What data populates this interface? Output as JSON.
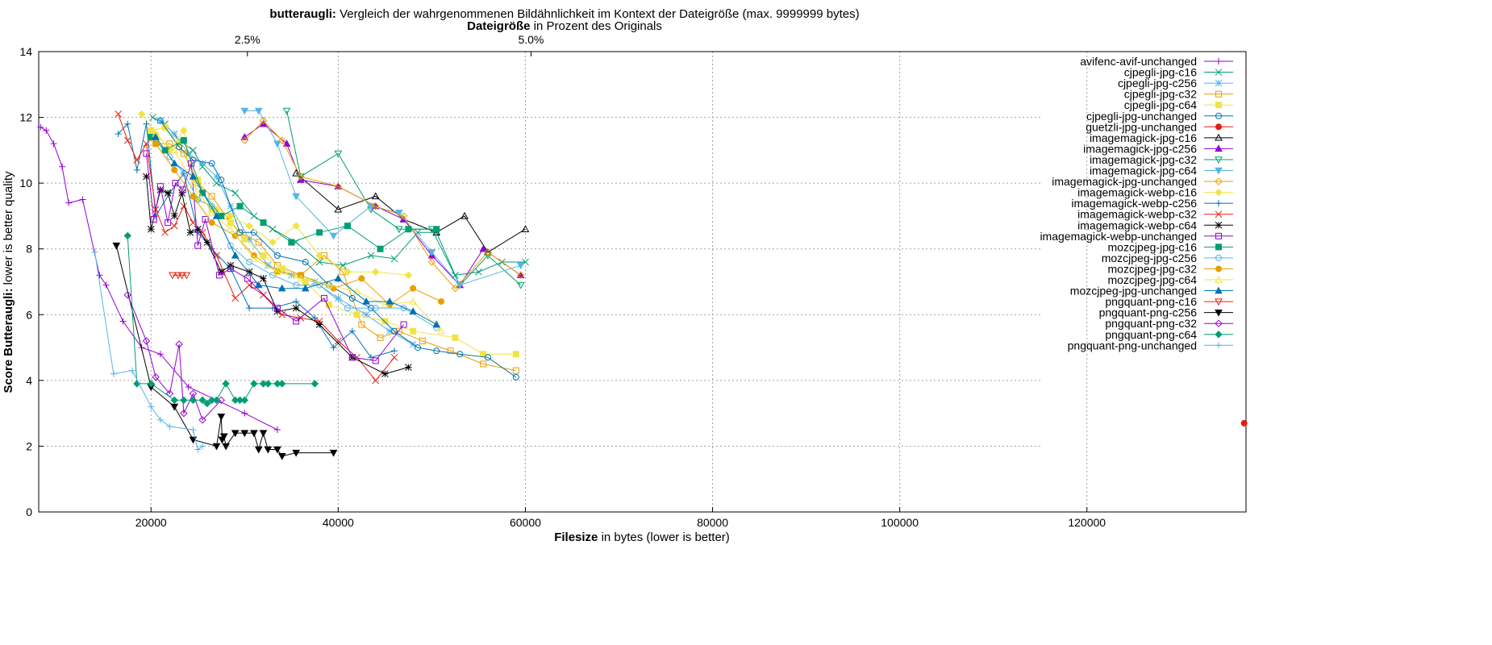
{
  "chart_data": {
    "type": "line",
    "title_bold": "butteraugli:",
    "title_rest": " Vergleich der wahrgenommenen Bildähnlichkeit im Kontext der Dateigröße (max. 9999999 bytes)",
    "x2label_bold": "Dateigröße",
    "x2label_rest": " in Prozent des Originals",
    "xlabel_bold": "Filesize",
    "xlabel_rest": " in bytes (lower is better)",
    "ylabel_bold": "Score Butteraugli:",
    "ylabel_rest": " lower is better quality",
    "xlim": [
      8000,
      137000
    ],
    "ylim": [
      0,
      14
    ],
    "xticks": [
      20000,
      40000,
      60000,
      80000,
      100000,
      120000
    ],
    "xtick_labels": [
      "20000",
      "40000",
      "60000",
      "80000",
      "100000",
      "120000"
    ],
    "yticks": [
      0,
      2,
      4,
      6,
      8,
      10,
      12,
      14
    ],
    "ytick_labels": [
      "0",
      "2",
      "4",
      "6",
      "8",
      "10",
      "12",
      "14"
    ],
    "x2ticks": [
      2.5,
      5.0
    ],
    "x2tick_labels": [
      "2.5%",
      "5.0%"
    ],
    "x2_ref_bytes": 1212000,
    "grid": true,
    "legend_position": "right",
    "series": [
      {
        "name": "avifenc-avif-unchanged",
        "color": "#9400d3",
        "marker": "plus",
        "x": [
          8200,
          8800,
          9600,
          10500,
          11200,
          12700,
          14500,
          15200,
          17000,
          19000,
          21000,
          24000,
          27000,
          30000,
          33500
        ],
        "y": [
          11.7,
          11.6,
          11.2,
          10.5,
          9.4,
          9.5,
          7.2,
          6.9,
          5.8,
          5.0,
          4.8,
          3.8,
          3.4,
          3.0,
          2.5
        ]
      },
      {
        "name": "cjpegli-jpg-c16",
        "color": "#009e73",
        "marker": "x",
        "x": [
          20200,
          21500,
          23000,
          24500,
          25500,
          27000,
          29000,
          31000,
          33000,
          35500,
          38000,
          40500,
          43500,
          46000,
          48500,
          50500,
          52500,
          55000,
          57500,
          60000
        ],
        "y": [
          12.0,
          11.8,
          11.3,
          11.0,
          10.5,
          10.0,
          9.7,
          9.0,
          8.6,
          8.2,
          7.6,
          7.5,
          7.8,
          7.7,
          8.5,
          8.5,
          7.2,
          7.3,
          7.6,
          7.6
        ]
      },
      {
        "name": "cjpegli-jpg-c256",
        "color": "#56b4e9",
        "marker": "star",
        "x": [
          21000,
          22500,
          24000,
          25500,
          27000,
          28500,
          30500,
          32500,
          35000,
          37500,
          40000,
          43000,
          45500,
          48000
        ],
        "y": [
          11.9,
          11.5,
          10.9,
          10.6,
          10.2,
          9.3,
          8.3,
          7.5,
          7.2,
          7.0,
          6.5,
          6.0,
          5.5,
          5.1
        ]
      },
      {
        "name": "cjpegli-jpg-c32",
        "color": "#e69f00",
        "marker": "square",
        "x": [
          20500,
          22000,
          23500,
          25000,
          26500,
          28000,
          29500,
          31500,
          33500,
          36000,
          38500,
          40500,
          42500,
          44500,
          46500,
          49000,
          52000,
          55500,
          59000
        ],
        "y": [
          11.2,
          11.2,
          10.9,
          10.0,
          9.6,
          9.0,
          8.5,
          8.2,
          7.5,
          7.2,
          7.8,
          7.3,
          5.7,
          5.3,
          5.5,
          5.2,
          4.9,
          4.5,
          4.3
        ]
      },
      {
        "name": "cjpegli-jpg-c64",
        "color": "#f0e442",
        "marker": "fsquare",
        "x": [
          20000,
          21500,
          23000,
          25000,
          26500,
          28500,
          30000,
          32000,
          34000,
          36500,
          39000,
          42000,
          45000,
          48000,
          52500,
          55500,
          59000
        ],
        "y": [
          11.6,
          11.7,
          11.2,
          10.1,
          9.2,
          8.8,
          8.3,
          7.8,
          7.4,
          7.0,
          6.3,
          6.0,
          5.8,
          5.5,
          5.3,
          4.8,
          4.8
        ]
      },
      {
        "name": "cjpegli-jpg-unchanged",
        "color": "#0072b2",
        "marker": "circle",
        "x": [
          21000,
          23000,
          24500,
          26500,
          27500,
          29500,
          31000,
          33500,
          36500,
          39000,
          41500,
          43500,
          46000,
          48500,
          50500,
          53000,
          56000,
          59000
        ],
        "y": [
          11.9,
          11.1,
          10.7,
          10.6,
          10.1,
          8.5,
          8.5,
          7.8,
          7.6,
          6.9,
          6.5,
          6.2,
          5.5,
          5.0,
          4.9,
          4.8,
          4.7,
          4.1
        ]
      },
      {
        "name": "guetzli-jpg-unchanged",
        "color": "#e51e10",
        "marker": "fcircle",
        "x": [
          136800
        ],
        "y": [
          2.7
        ]
      },
      {
        "name": "imagemagick-jpg-c16",
        "color": "#000000",
        "marker": "triangle",
        "x": [
          35500,
          40000,
          44000,
          47000,
          50500,
          53500,
          56000,
          60000
        ],
        "y": [
          10.3,
          9.2,
          9.6,
          8.9,
          8.5,
          9.0,
          7.9,
          8.6
        ]
      },
      {
        "name": "imagemagick-jpg-c256",
        "color": "#9400d3",
        "marker": "ftriangle",
        "x": [
          30000,
          32000,
          34500,
          36000,
          40000,
          44000,
          47000,
          50000,
          53000,
          55500,
          59500
        ],
        "y": [
          11.4,
          11.8,
          11.2,
          10.1,
          9.9,
          9.3,
          8.9,
          7.8,
          6.9,
          8.0,
          7.2
        ]
      },
      {
        "name": "imagemagick-jpg-c32",
        "color": "#009e73",
        "marker": "itriangle",
        "x": [
          34500,
          36000,
          40000,
          43500,
          46500,
          50000,
          53000,
          56000,
          59500
        ],
        "y": [
          12.2,
          10.2,
          10.9,
          9.2,
          8.6,
          8.6,
          6.9,
          7.8,
          6.9
        ]
      },
      {
        "name": "imagemagick-jpg-c64",
        "color": "#56b4e9",
        "marker": "fitriangle",
        "x": [
          30000,
          31500,
          33500,
          35500,
          39500,
          43500,
          46500,
          50000,
          53000,
          59500
        ],
        "y": [
          12.2,
          12.2,
          11.2,
          9.6,
          8.4,
          9.3,
          9.1,
          7.9,
          6.9,
          7.5
        ]
      },
      {
        "name": "imagemagick-jpg-unchanged",
        "color": "#e69f00",
        "marker": "diamond",
        "x": [
          30000,
          32000,
          34000,
          36000,
          40000,
          44000,
          47000,
          50000,
          52500,
          56000,
          59500
        ],
        "y": [
          11.3,
          11.9,
          11.3,
          10.2,
          9.9,
          9.3,
          9.0,
          7.6,
          6.8,
          7.9,
          7.2
        ]
      },
      {
        "name": "imagemagick-webp-c16",
        "color": "#f0e442",
        "marker": "fdiamond",
        "x": [
          19000,
          20500,
          22000,
          23500,
          25000,
          27000,
          28500,
          30500,
          33000,
          35500,
          38000,
          41000,
          44000,
          47500
        ],
        "y": [
          12.1,
          11.5,
          11.0,
          11.6,
          9.5,
          9.2,
          9.0,
          8.7,
          8.2,
          8.7,
          7.8,
          7.3,
          7.3,
          7.2
        ]
      },
      {
        "name": "imagemagick-webp-c256",
        "color": "#0072b2",
        "marker": "plus",
        "x": [
          16500,
          17500,
          18500,
          19500,
          20500,
          22000,
          23500,
          25000,
          26500,
          28500,
          30500,
          33000,
          35500,
          37500,
          39500,
          41500,
          43500,
          46000
        ],
        "y": [
          11.5,
          11.8,
          10.4,
          11.8,
          9.0,
          9.7,
          10.3,
          8.5,
          8.0,
          7.4,
          6.2,
          6.2,
          6.4,
          5.9,
          5.0,
          5.5,
          4.7,
          4.9
        ]
      },
      {
        "name": "imagemagick-webp-c32",
        "color": "#e51e10",
        "marker": "x",
        "x": [
          16500,
          17500,
          18500,
          19500,
          20500,
          21500,
          22500,
          23500,
          24500,
          25500,
          27000,
          29000,
          30500,
          32000,
          34000,
          36000,
          38000,
          40000,
          42000,
          44000,
          46000
        ],
        "y": [
          12.1,
          11.3,
          10.7,
          11.2,
          9.2,
          8.5,
          8.7,
          9.3,
          8.8,
          8.5,
          7.8,
          6.5,
          6.9,
          6.6,
          6.0,
          5.9,
          5.8,
          5.2,
          4.7,
          4.0,
          4.7
        ]
      },
      {
        "name": "imagemagick-webp-c64",
        "color": "#000000",
        "marker": "star",
        "x": [
          19500,
          20000,
          21000,
          21800,
          22500,
          23300,
          24200,
          25000,
          26000,
          27500,
          28500,
          30500,
          32000,
          33500,
          35500,
          38000,
          41500,
          45000,
          47500
        ],
        "y": [
          10.2,
          8.6,
          9.8,
          9.7,
          9.0,
          9.7,
          8.5,
          8.6,
          8.2,
          7.3,
          7.5,
          7.3,
          7.1,
          6.1,
          6.2,
          5.7,
          4.7,
          4.2,
          4.4
        ]
      },
      {
        "name": "imagemagick-webp-unchanged",
        "color": "#9400d3",
        "marker": "square",
        "x": [
          19500,
          20300,
          21000,
          21800,
          22600,
          23400,
          24300,
          25000,
          25800,
          27300,
          28500,
          30300,
          31000,
          33500,
          35500,
          38500,
          41500,
          44000,
          47000
        ],
        "y": [
          10.9,
          8.9,
          9.9,
          8.8,
          10.0,
          9.8,
          10.6,
          8.1,
          8.9,
          7.2,
          7.4,
          7.1,
          6.9,
          6.2,
          5.8,
          6.5,
          4.7,
          4.6,
          5.7
        ]
      },
      {
        "name": "mozcjpeg-jpg-c16",
        "color": "#009e73",
        "marker": "fsquare",
        "x": [
          20000,
          21500,
          23500,
          25500,
          27500,
          29500,
          32000,
          35000,
          38000,
          41000,
          44500,
          47500,
          50500
        ],
        "y": [
          11.4,
          11.0,
          11.3,
          9.7,
          9.0,
          9.3,
          8.8,
          8.2,
          8.5,
          8.7,
          8.0,
          8.6,
          8.6
        ]
      },
      {
        "name": "mozcjpeg-jpg-c256",
        "color": "#56b4e9",
        "marker": "circle",
        "x": [
          22000,
          23500,
          25000,
          26500,
          28500,
          30500,
          33000,
          35500,
          38000,
          41000,
          44000,
          47000,
          50500
        ],
        "y": [
          10.8,
          10.3,
          9.5,
          9.3,
          8.1,
          7.6,
          7.2,
          6.9,
          6.9,
          6.2,
          6.2,
          6.2,
          5.6
        ]
      },
      {
        "name": "mozcjpeg-jpg-c32",
        "color": "#e69f00",
        "marker": "fcircle",
        "x": [
          20500,
          22500,
          24500,
          26500,
          29000,
          31000,
          33500,
          36000,
          39500,
          42500,
          45500,
          48000,
          51000
        ],
        "y": [
          11.2,
          10.4,
          9.6,
          8.8,
          8.4,
          7.8,
          7.3,
          7.2,
          6.8,
          7.1,
          6.3,
          6.8,
          6.4
        ]
      },
      {
        "name": "mozcjpeg-jpg-c64",
        "color": "#f0e442",
        "marker": "triangle",
        "x": [
          20500,
          22500,
          24500,
          26500,
          28500,
          31000,
          33500,
          36000,
          39000,
          42000,
          45000,
          48000,
          51000
        ],
        "y": [
          11.5,
          11.0,
          10.0,
          9.1,
          8.6,
          7.7,
          7.3,
          7.1,
          6.9,
          6.7,
          6.3,
          6.4,
          5.5
        ]
      },
      {
        "name": "mozcjpeg-jpg-unchanged",
        "color": "#0072b2",
        "marker": "ftriangle",
        "x": [
          20500,
          22500,
          24500,
          27000,
          29000,
          31500,
          34000,
          36500,
          40000,
          43000,
          45500,
          48000,
          50500
        ],
        "y": [
          11.4,
          10.6,
          10.2,
          9.0,
          7.8,
          6.9,
          6.8,
          6.8,
          7.1,
          6.4,
          6.4,
          6.1,
          5.7
        ]
      },
      {
        "name": "pngquant-png-c16",
        "color": "#e51e10",
        "marker": "itriangle",
        "x": [
          22300,
          22900,
          23300,
          23800
        ],
        "y": [
          7.2,
          7.2,
          7.2,
          7.2
        ]
      },
      {
        "name": "pngquant-png-c256",
        "color": "#000000",
        "marker": "fitriangle",
        "x": [
          16300,
          20000,
          22500,
          24500,
          27000,
          27500,
          27600,
          27800,
          28000,
          29000,
          30000,
          31000,
          31500,
          32000,
          32500,
          33500,
          34000,
          35500,
          39500
        ],
        "y": [
          8.1,
          3.8,
          3.2,
          2.2,
          2.0,
          2.9,
          2.2,
          2.3,
          2.0,
          2.4,
          2.4,
          2.4,
          1.9,
          2.4,
          1.9,
          1.9,
          1.7,
          1.8,
          1.8
        ]
      },
      {
        "name": "pngquant-png-c32",
        "color": "#9400d3",
        "marker": "diamond",
        "x": [
          17500,
          19500,
          20500,
          22000,
          23000,
          23500,
          24500,
          25500,
          27500
        ],
        "y": [
          6.6,
          5.2,
          4.1,
          3.6,
          5.1,
          3.0,
          3.6,
          2.8,
          3.4
        ]
      },
      {
        "name": "pngquant-png-c64",
        "color": "#009e73",
        "marker": "fdiamond",
        "x": [
          17500,
          18500,
          20000,
          22500,
          23500,
          24500,
          25500,
          26000,
          26500,
          27000,
          28000,
          29000,
          29500,
          30000,
          31000,
          32000,
          32500,
          33500,
          34000,
          37500
        ],
        "y": [
          8.4,
          3.9,
          3.9,
          3.4,
          3.4,
          3.4,
          3.4,
          3.3,
          3.4,
          3.4,
          3.9,
          3.4,
          3.4,
          3.4,
          3.9,
          3.9,
          3.9,
          3.9,
          3.9,
          3.9
        ]
      },
      {
        "name": "pngquant-png-unchanged",
        "color": "#56b4e9",
        "marker": "plus",
        "x": [
          14000,
          16000,
          18000,
          20000,
          21000,
          22000,
          24500,
          25000,
          25500
        ],
        "y": [
          7.9,
          4.2,
          4.3,
          3.2,
          2.8,
          2.6,
          2.5,
          1.9,
          2.0
        ]
      }
    ]
  }
}
